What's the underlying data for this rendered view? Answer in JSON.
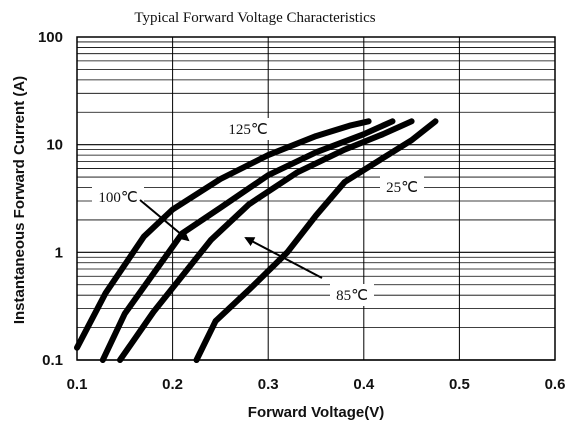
{
  "chart_data": {
    "type": "line",
    "title": "Typical Forward Voltage Characteristics",
    "xlabel": "Forward Voltage(V)",
    "ylabel": "Instantaneous Forward Current (A)",
    "xlim": [
      0.1,
      0.6
    ],
    "ylim": [
      0.1,
      100
    ],
    "y_scale": "log",
    "grid": true,
    "x_ticks": [
      "0.1",
      "0.2",
      "0.3",
      "0.4",
      "0.5",
      "0.6"
    ],
    "y_ticks": [
      "0.1",
      "1",
      "10",
      "100"
    ],
    "series": [
      {
        "name": "125℃",
        "x": [
          0.1,
          0.13,
          0.17,
          0.2,
          0.25,
          0.3,
          0.35,
          0.385,
          0.405
        ],
        "y": [
          0.13,
          0.42,
          1.4,
          2.5,
          4.8,
          8.0,
          12.0,
          15.0,
          16.5
        ]
      },
      {
        "name": "100℃",
        "x": [
          0.127,
          0.15,
          0.21,
          0.25,
          0.3,
          0.35,
          0.4,
          0.43
        ],
        "y": [
          0.1,
          0.27,
          1.5,
          2.6,
          5.2,
          8.5,
          12.5,
          16.5
        ]
      },
      {
        "name": "85℃",
        "x": [
          0.145,
          0.18,
          0.24,
          0.28,
          0.33,
          0.38,
          0.42,
          0.45
        ],
        "y": [
          0.1,
          0.28,
          1.3,
          2.8,
          5.5,
          9.0,
          12.5,
          16.5
        ]
      },
      {
        "name": "25℃",
        "x": [
          0.225,
          0.245,
          0.28,
          0.32,
          0.35,
          0.38,
          0.42,
          0.45,
          0.475
        ],
        "y": [
          0.1,
          0.23,
          0.45,
          1.0,
          2.2,
          4.5,
          7.5,
          11.0,
          16.5
        ]
      }
    ],
    "annotations": [
      {
        "text": "125℃",
        "series": "125℃"
      },
      {
        "text": "100℃",
        "series": "100℃"
      },
      {
        "text": "85℃",
        "series": "85℃"
      },
      {
        "text": "25℃",
        "series": "25℃"
      }
    ],
    "colors": {
      "line": "#000000",
      "grid": "#000000"
    }
  }
}
